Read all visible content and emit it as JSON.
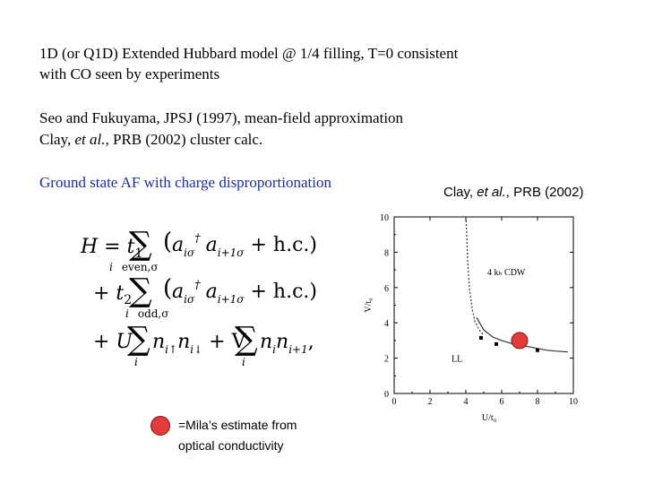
{
  "intro": {
    "line1": "1D (or Q1D) Extended Hubbard model @ 1/4 filling, T=0 consistent",
    "line2": "with CO seen by experiments"
  },
  "refs": {
    "line1": "Seo and Fukuyama, JPSJ (1997), mean-field approximation",
    "line2_prefix": "Clay,  ",
    "line2_etal": "et al.",
    "line2_suffix": ", PRB  (2002) cluster calc."
  },
  "ground_state": "Ground state AF with charge disproportionation",
  "plot_caption": {
    "prefix": "Clay,  ",
    "etal": "et al.",
    "suffix": ", PRB (2002)"
  },
  "legend": {
    "line1": "=Mila’s estimate from",
    "line2": "optical conductivity"
  },
  "equation": {
    "H": "H = t",
    "t1_sub": "1",
    "t2_sub": "2",
    "sum": "∑",
    "sub_even": "i   even,σ",
    "sub_odd": "i   odd,σ",
    "term1": "(a†iσ ai+1σ + h.c.)",
    "plus_t": "+ t",
    "line3_a": "+ U",
    "line3_b": "n",
    "line3_c": "+ V",
    "line3_d": "n",
    "sub_i": "i",
    "hc": "+ h.c.)"
  },
  "colors": {
    "blue_text": "#1a2fa0",
    "marker": "#e53a3a"
  },
  "chart_data": {
    "type": "line",
    "xlabel": "U/t₀",
    "ylabel": "V/t₀",
    "xlim": [
      0,
      10
    ],
    "ylim": [
      0,
      10
    ],
    "xticks": [
      "0",
      "2",
      "4",
      "6",
      "8",
      "10"
    ],
    "yticks": [
      "0",
      "2",
      "4",
      "6",
      "8",
      "10"
    ],
    "annotations": [
      "4 kₕ CDW",
      "LL"
    ],
    "series": [
      {
        "style": "dashed",
        "x": [
          4.0,
          4.05,
          4.1,
          4.2,
          4.35,
          4.5,
          4.75,
          5.0
        ],
        "y": [
          10.0,
          9.0,
          7.5,
          6.0,
          4.8,
          4.1,
          3.6,
          3.3
        ]
      },
      {
        "style": "solid",
        "x": [
          4.6,
          5.0,
          5.5,
          6.0,
          6.5,
          7.0,
          7.5,
          8.0,
          8.5,
          9.0,
          9.7
        ],
        "y": [
          4.3,
          3.6,
          3.2,
          3.0,
          2.85,
          2.75,
          2.65,
          2.55,
          2.45,
          2.4,
          2.35
        ]
      }
    ],
    "points": [
      {
        "x": 4.85,
        "y": 3.15
      },
      {
        "x": 5.7,
        "y": 2.8
      },
      {
        "x": 6.9,
        "y": 2.65
      },
      {
        "x": 8.0,
        "y": 2.45
      }
    ],
    "marker": {
      "x": 7.0,
      "y": 3.0
    }
  }
}
